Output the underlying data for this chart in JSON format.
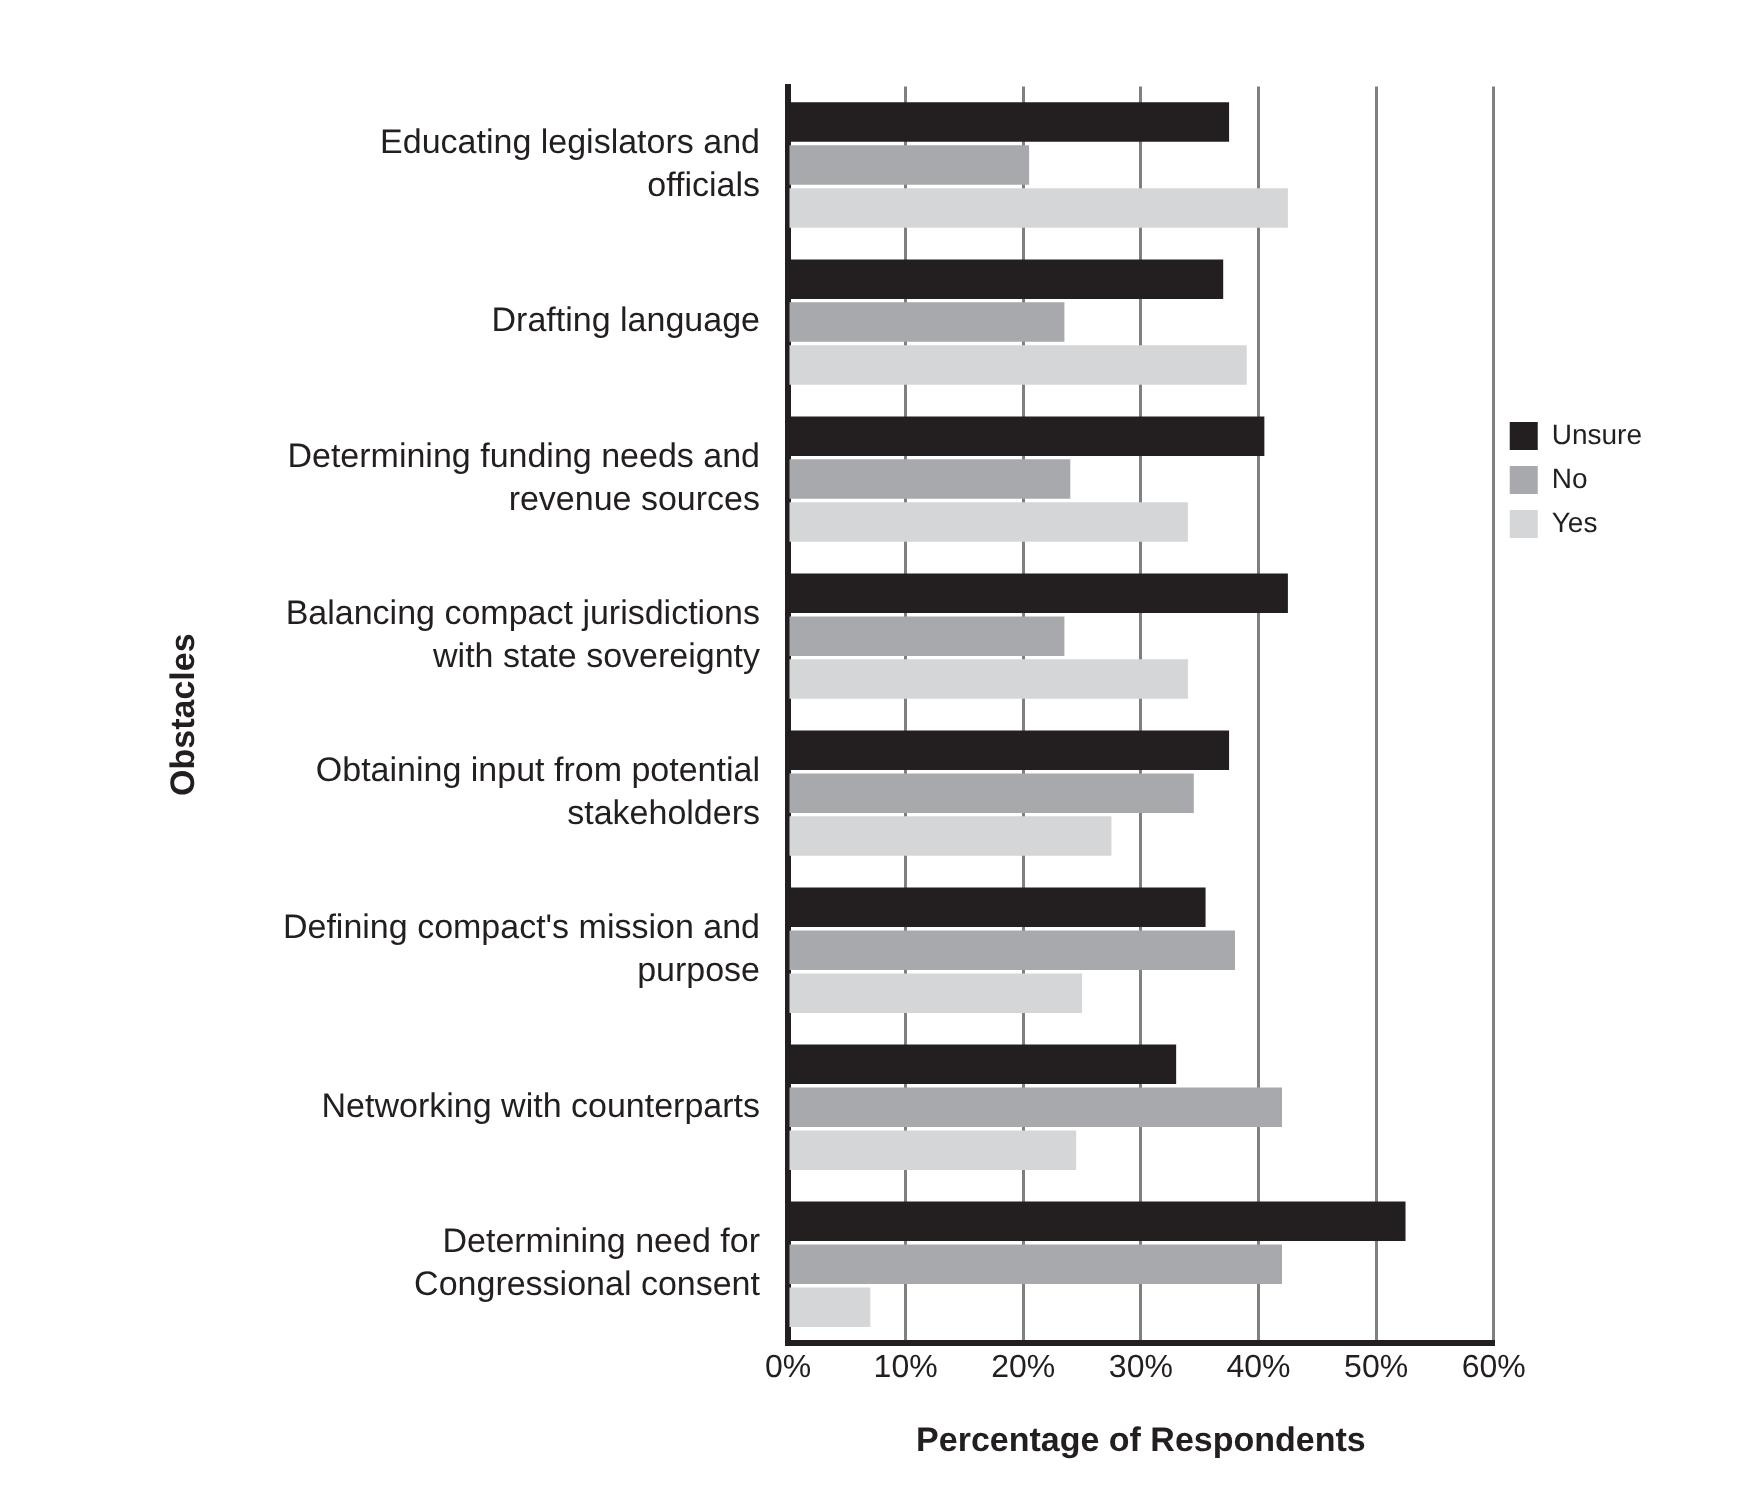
{
  "chart_data": {
    "type": "bar",
    "orientation": "horizontal",
    "xlabel": "Percentage of Respondents",
    "ylabel": "Obstacles",
    "categories": [
      "Educating legislators and officials",
      "Drafting language",
      "Determining funding needs and revenue sources",
      "Balancing compact jurisdictions with state sovereignty",
      "Obtaining input from potential stakeholders",
      "Defining compact's mission and purpose",
      "Networking with counterparts",
      "Determining need for Congressional consent"
    ],
    "series": [
      {
        "name": "Unsure",
        "color": "#231f20",
        "values": [
          37.5,
          37,
          40.5,
          42.5,
          37.5,
          35.5,
          33,
          52.5
        ]
      },
      {
        "name": "No",
        "color": "#a7a9ac",
        "values": [
          20.5,
          23.5,
          24,
          23.5,
          34.5,
          38,
          42,
          42
        ]
      },
      {
        "name": "Yes",
        "color": "#d5d6d8",
        "values": [
          42.5,
          39,
          34,
          34,
          27.5,
          25,
          24.5,
          7
        ]
      }
    ],
    "xlim": [
      0,
      60
    ],
    "xticks": [
      {
        "value": 0,
        "label": "0%"
      },
      {
        "value": 10,
        "label": "10%"
      },
      {
        "value": 20,
        "label": "20%"
      },
      {
        "value": 30,
        "label": "30%"
      },
      {
        "value": 40,
        "label": "40%"
      },
      {
        "value": 50,
        "label": "50%"
      },
      {
        "value": 60,
        "label": "60%"
      }
    ],
    "grid": "x",
    "legend": "right"
  }
}
